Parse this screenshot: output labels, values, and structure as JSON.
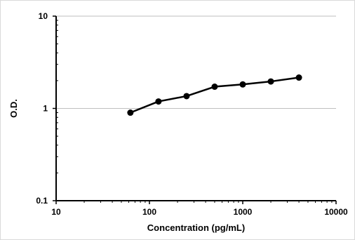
{
  "chart_data": {
    "type": "line",
    "title": "",
    "xlabel": "Concentration (pg/mL)",
    "ylabel": "O.D.",
    "xscale": "log",
    "yscale": "log",
    "xlim": [
      10,
      10000
    ],
    "ylim": [
      0.1,
      10
    ],
    "x_tick_labels": [
      "10",
      "100",
      "1000",
      "10000"
    ],
    "y_tick_labels": [
      "0.1",
      "1",
      "10"
    ],
    "grid": "horizontal major gridlines",
    "legend": "none",
    "series": [
      {
        "x": [
          62.5,
          125,
          250,
          500,
          1000,
          2000,
          4000
        ],
        "y": [
          0.9,
          1.19,
          1.36,
          1.72,
          1.82,
          1.96,
          2.16
        ]
      }
    ],
    "colors": {
      "line": "#000000",
      "marker": "#000000",
      "grid": "#bfbfbf",
      "frame": "#d9d9d9"
    }
  }
}
